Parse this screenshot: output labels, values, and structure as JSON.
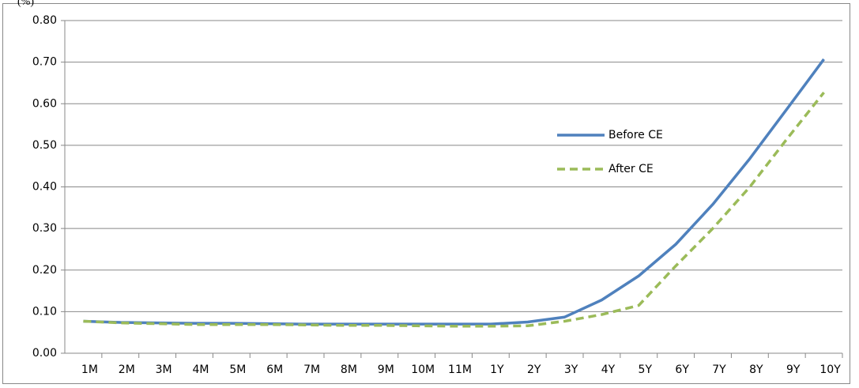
{
  "chart_data": {
    "type": "line",
    "y_label": "(%)",
    "categories": [
      "1M",
      "2M",
      "3M",
      "4M",
      "5M",
      "6M",
      "7M",
      "8M",
      "9M",
      "10M",
      "11M",
      "1Y",
      "2Y",
      "3Y",
      "4Y",
      "5Y",
      "6Y",
      "7Y",
      "8Y",
      "9Y",
      "10Y"
    ],
    "series": [
      {
        "name": "Before CE",
        "color": "#4f81bd",
        "dash": "solid",
        "values": [
          0.077,
          0.074,
          0.073,
          0.072,
          0.072,
          0.071,
          0.07,
          0.07,
          0.07,
          0.07,
          0.07,
          0.07,
          0.075,
          0.087,
          0.128,
          0.186,
          0.262,
          0.358,
          0.468,
          0.587,
          0.707
        ]
      },
      {
        "name": "After CE",
        "color": "#9bbb59",
        "dash": "dashed",
        "values": [
          0.077,
          0.073,
          0.071,
          0.069,
          0.069,
          0.069,
          0.068,
          0.067,
          0.067,
          0.066,
          0.065,
          0.065,
          0.066,
          0.077,
          0.093,
          0.115,
          0.21,
          0.3,
          0.4,
          0.515,
          0.627
        ]
      }
    ],
    "ylim": [
      0,
      0.8
    ],
    "yticks": [
      {
        "value": 0,
        "label": "0.00"
      },
      {
        "value": 0.1,
        "label": "0.10"
      },
      {
        "value": 0.2,
        "label": "0.20"
      },
      {
        "value": 0.3,
        "label": "0.30"
      },
      {
        "value": 0.4,
        "label": "0.40"
      },
      {
        "value": 0.5,
        "label": "0.50"
      },
      {
        "value": 0.6,
        "label": "0.60"
      },
      {
        "value": 0.7,
        "label": "0.70"
      },
      {
        "value": 0.8,
        "label": "0.80"
      }
    ],
    "grid": true,
    "legend": "right"
  }
}
